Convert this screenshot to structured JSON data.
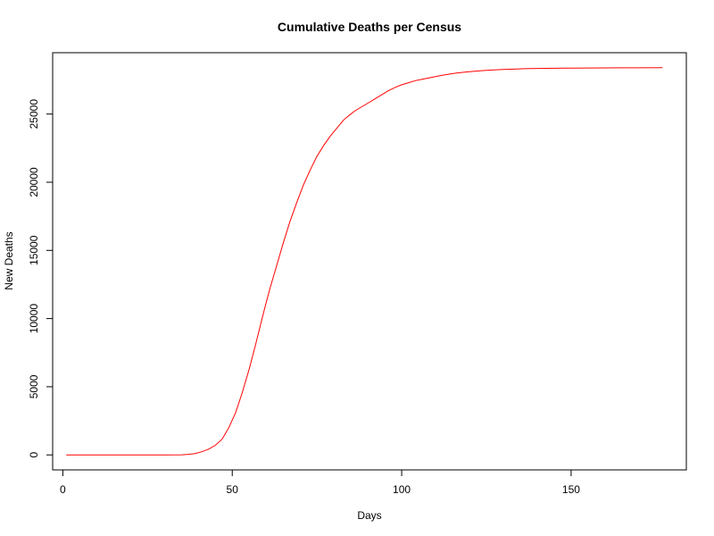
{
  "chart_data": {
    "type": "line",
    "title": "Cumulative Deaths per Census",
    "xlabel": "Days",
    "ylabel": "New Deaths",
    "xlim": [
      -3,
      184
    ],
    "ylim": [
      -1100,
      29500
    ],
    "xticks": [
      0,
      50,
      100,
      150
    ],
    "yticks": [
      0,
      5000,
      10000,
      15000,
      20000,
      25000
    ],
    "grid": false,
    "line_color": "#ff0000",
    "series": [
      {
        "x": [
          1,
          10,
          20,
          30,
          35,
          37,
          39,
          41,
          43,
          45,
          47,
          49,
          51,
          53,
          55,
          57,
          59,
          61,
          63,
          65,
          67,
          69,
          71,
          73,
          75,
          77,
          79,
          81,
          83,
          84,
          85,
          86,
          88,
          90,
          92,
          94,
          96,
          98,
          100,
          102,
          104,
          106,
          108,
          110,
          112,
          114,
          116,
          118,
          120,
          122,
          124,
          126,
          128,
          130,
          132,
          134,
          136,
          138,
          140,
          145,
          150,
          155,
          160,
          165,
          170,
          177
        ],
        "y": [
          0,
          0,
          0,
          0,
          10,
          40,
          100,
          230,
          420,
          700,
          1150,
          2000,
          3100,
          4600,
          6300,
          8200,
          10200,
          12100,
          13800,
          15500,
          17100,
          18500,
          19800,
          20900,
          21900,
          22700,
          23400,
          24000,
          24600,
          24800,
          25000,
          25200,
          25500,
          25800,
          26100,
          26400,
          26700,
          26950,
          27150,
          27300,
          27450,
          27550,
          27650,
          27750,
          27850,
          27930,
          28000,
          28060,
          28110,
          28150,
          28190,
          28220,
          28250,
          28270,
          28290,
          28310,
          28330,
          28340,
          28345,
          28360,
          28370,
          28380,
          28385,
          28390,
          28395,
          28400
        ]
      }
    ]
  }
}
